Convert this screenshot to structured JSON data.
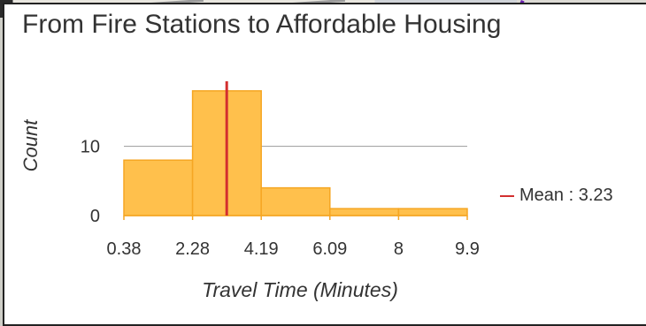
{
  "chart_data": {
    "type": "histogram",
    "title": "From Fire Stations to Affordable Housing",
    "xlabel": "Travel Time (Minutes)",
    "ylabel": "Count",
    "bin_edges": [
      0.38,
      2.28,
      4.19,
      6.09,
      8,
      9.9
    ],
    "x_tick_labels": [
      "0.38",
      "2.28",
      "4.19",
      "6.09",
      "8",
      "9.9"
    ],
    "counts": [
      8,
      18,
      4,
      1,
      1
    ],
    "y_ticks": [
      0,
      10
    ],
    "ylim": [
      0,
      19
    ],
    "grid": "horizontal",
    "bar_color": "#ffc04c",
    "bar_edge_color": "#f5a623",
    "mean": {
      "label": "Mean : 3.23",
      "value": 3.23,
      "color": "#d32f2f"
    },
    "legend_position": "right"
  }
}
